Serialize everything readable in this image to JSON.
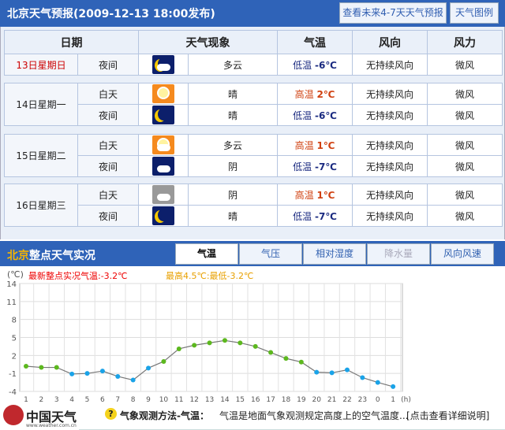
{
  "header": {
    "title": "北京天气预报(2009-12-13  18:00发布)",
    "btn_future": "查看未来4-7天天气预报",
    "btn_legend": "天气图例"
  },
  "table": {
    "headers": [
      "日期",
      "天气现象",
      "气温",
      "风向",
      "风力"
    ],
    "days": [
      {
        "date": "13日星期日",
        "rows": [
          {
            "period": "夜间",
            "icon": "moon-cloud-icon",
            "desc": "多云",
            "temp_label": "低温",
            "temp": "-6℃",
            "dir": "无持续风向",
            "force": "微风"
          }
        ]
      },
      {
        "date": "14日星期一",
        "rows": [
          {
            "period": "白天",
            "icon": "sun-icon",
            "desc": "晴",
            "temp_label": "高温",
            "temp": "2℃",
            "dir": "无持续风向",
            "force": "微风"
          },
          {
            "period": "夜间",
            "icon": "moon-icon",
            "desc": "晴",
            "temp_label": "低温",
            "temp": "-6℃",
            "dir": "无持续风向",
            "force": "微风"
          }
        ]
      },
      {
        "date": "15日星期二",
        "rows": [
          {
            "period": "白天",
            "icon": "sun-cloud-icon",
            "desc": "多云",
            "temp_label": "高温",
            "temp": "1℃",
            "dir": "无持续风向",
            "force": "微风"
          },
          {
            "period": "夜间",
            "icon": "cloud-night-icon",
            "desc": "阴",
            "temp_label": "低温",
            "temp": "-7℃",
            "dir": "无持续风向",
            "force": "微风"
          }
        ]
      },
      {
        "date": "16日星期三",
        "rows": [
          {
            "period": "白天",
            "icon": "overcast-icon",
            "desc": "阴",
            "temp_label": "高温",
            "temp": "1℃",
            "dir": "无持续风向",
            "force": "微风"
          },
          {
            "period": "夜间",
            "icon": "moon-icon",
            "desc": "晴",
            "temp_label": "低温",
            "temp": "-7℃",
            "dir": "无持续风向",
            "force": "微风"
          }
        ]
      }
    ]
  },
  "hourly": {
    "title_city": "北京",
    "title_rest": "整点天气实况",
    "tabs": [
      "气温",
      "气压",
      "相对湿度",
      "降水量",
      "风向风速"
    ],
    "active_tab": "气温",
    "unit": "(℃)",
    "latest": "最新整点实况气温:-3.2℃",
    "maxmin": "最高4.5℃:最低-3.2℃"
  },
  "chart_data": {
    "type": "line",
    "x": [
      "1",
      "2",
      "3",
      "4",
      "5",
      "6",
      "7",
      "8",
      "9",
      "10",
      "11",
      "12",
      "13",
      "14",
      "15",
      "16",
      "17",
      "18",
      "19",
      "20",
      "21",
      "22",
      "23",
      "0",
      "1"
    ],
    "values": [
      0.2,
      0.0,
      0.0,
      -1.1,
      -1.0,
      -0.6,
      -1.5,
      -2.1,
      -0.1,
      1.0,
      3.1,
      3.7,
      4.1,
      4.5,
      4.1,
      3.5,
      2.5,
      1.5,
      0.9,
      -0.8,
      -0.9,
      -0.4,
      -1.7,
      -2.5,
      -3.2
    ],
    "yticks": [
      14,
      11,
      8,
      5,
      2,
      -1,
      -4
    ],
    "ylim": [
      -4,
      14
    ],
    "xunit": "(h)",
    "grid": true,
    "colors": {
      "positive": "#5cb81e",
      "negative": "#1aa3e8",
      "line": "#777777"
    }
  },
  "footer": {
    "logo": "中国天气",
    "logo_url": "www.weather.com.cn",
    "method_label": "气象观测方法-气温：",
    "method_text": "气温是地面气象观测规定高度上的空气温度...",
    "detail_link": "[点击查看详细说明]"
  }
}
